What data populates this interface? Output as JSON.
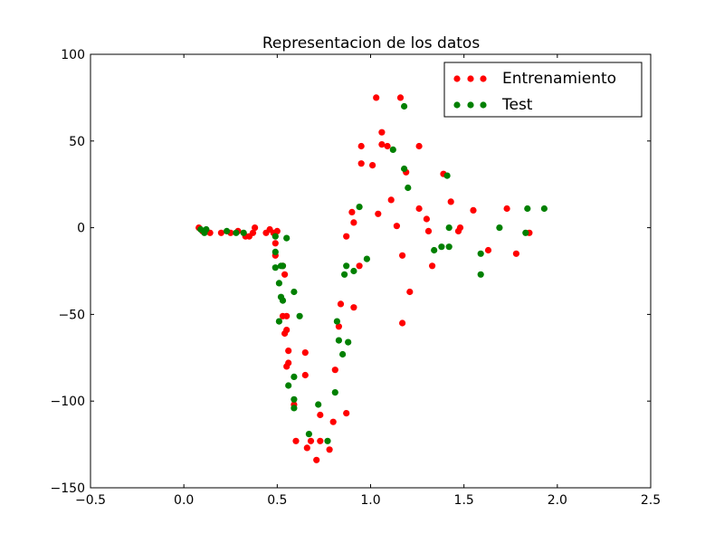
{
  "chart_data": {
    "type": "scatter",
    "title": "Representacion de los datos",
    "xlabel": "",
    "ylabel": "",
    "xlim": [
      -0.5,
      2.5
    ],
    "ylim": [
      -150,
      100
    ],
    "x_ticks": [
      -0.5,
      0.0,
      0.5,
      1.0,
      1.5,
      2.0,
      2.5
    ],
    "x_tick_labels": [
      "−0.5",
      "0.0",
      "0.5",
      "1.0",
      "1.5",
      "2.0",
      "2.5"
    ],
    "y_ticks": [
      -150,
      -100,
      -50,
      0,
      50,
      100
    ],
    "y_tick_labels": [
      "−150",
      "−100",
      "−50",
      "0",
      "50",
      "100"
    ],
    "grid": false,
    "legend_position": "top-right",
    "series": [
      {
        "name": "Entrenamiento",
        "color": "#ff0000",
        "points": [
          [
            0.08,
            0
          ],
          [
            0.1,
            -2
          ],
          [
            0.14,
            -3
          ],
          [
            0.2,
            -3
          ],
          [
            0.25,
            -3
          ],
          [
            0.29,
            -2
          ],
          [
            0.33,
            -5
          ],
          [
            0.35,
            -5
          ],
          [
            0.37,
            -3
          ],
          [
            0.38,
            0
          ],
          [
            0.44,
            -3
          ],
          [
            0.46,
            -1
          ],
          [
            0.48,
            -3
          ],
          [
            0.49,
            -9
          ],
          [
            0.49,
            -16
          ],
          [
            0.5,
            -2
          ],
          [
            0.53,
            -22
          ],
          [
            0.54,
            -27
          ],
          [
            0.53,
            -51
          ],
          [
            0.55,
            -51
          ],
          [
            0.54,
            -61
          ],
          [
            0.55,
            -59
          ],
          [
            0.56,
            -71
          ],
          [
            0.55,
            -80
          ],
          [
            0.56,
            -78
          ],
          [
            0.59,
            -102
          ],
          [
            0.6,
            -123
          ],
          [
            0.65,
            -72
          ],
          [
            0.65,
            -85
          ],
          [
            0.66,
            -127
          ],
          [
            0.68,
            -123
          ],
          [
            0.71,
            -134
          ],
          [
            0.73,
            -108
          ],
          [
            0.73,
            -123
          ],
          [
            0.78,
            -128
          ],
          [
            0.8,
            -112
          ],
          [
            0.81,
            -82
          ],
          [
            0.83,
            -57
          ],
          [
            0.84,
            -44
          ],
          [
            0.87,
            -5
          ],
          [
            0.87,
            -107
          ],
          [
            0.9,
            9
          ],
          [
            0.91,
            3
          ],
          [
            0.91,
            -46
          ],
          [
            0.94,
            -22
          ],
          [
            0.95,
            37
          ],
          [
            0.95,
            47
          ],
          [
            1.01,
            36
          ],
          [
            1.03,
            75
          ],
          [
            1.04,
            8
          ],
          [
            1.06,
            55
          ],
          [
            1.06,
            48
          ],
          [
            1.09,
            47
          ],
          [
            1.11,
            16
          ],
          [
            1.14,
            1
          ],
          [
            1.16,
            75
          ],
          [
            1.17,
            -16
          ],
          [
            1.17,
            -55
          ],
          [
            1.19,
            32
          ],
          [
            1.21,
            -37
          ],
          [
            1.26,
            47
          ],
          [
            1.26,
            11
          ],
          [
            1.3,
            5
          ],
          [
            1.31,
            -2
          ],
          [
            1.33,
            -22
          ],
          [
            1.39,
            31
          ],
          [
            1.43,
            15
          ],
          [
            1.47,
            -2
          ],
          [
            1.48,
            0
          ],
          [
            1.55,
            10
          ],
          [
            1.63,
            -13
          ],
          [
            1.73,
            11
          ],
          [
            1.78,
            -15
          ],
          [
            1.85,
            -3
          ]
        ]
      },
      {
        "name": "Test",
        "color": "#008000",
        "points": [
          [
            0.09,
            -1
          ],
          [
            0.11,
            -3
          ],
          [
            0.12,
            -1
          ],
          [
            0.23,
            -2
          ],
          [
            0.28,
            -3
          ],
          [
            0.32,
            -3
          ],
          [
            0.49,
            -5
          ],
          [
            0.49,
            -14
          ],
          [
            0.49,
            -23
          ],
          [
            0.52,
            -22
          ],
          [
            0.53,
            -22
          ],
          [
            0.55,
            -6
          ],
          [
            0.51,
            -32
          ],
          [
            0.52,
            -40
          ],
          [
            0.53,
            -42
          ],
          [
            0.51,
            -54
          ],
          [
            0.59,
            -37
          ],
          [
            0.62,
            -51
          ],
          [
            0.56,
            -91
          ],
          [
            0.59,
            -86
          ],
          [
            0.59,
            -99
          ],
          [
            0.59,
            -104
          ],
          [
            0.67,
            -119
          ],
          [
            0.72,
            -102
          ],
          [
            0.77,
            -123
          ],
          [
            0.81,
            -95
          ],
          [
            0.82,
            -54
          ],
          [
            0.83,
            -65
          ],
          [
            0.85,
            -73
          ],
          [
            0.86,
            -27
          ],
          [
            0.87,
            -22
          ],
          [
            0.88,
            -66
          ],
          [
            0.91,
            -25
          ],
          [
            0.94,
            12
          ],
          [
            0.98,
            -18
          ],
          [
            1.12,
            45
          ],
          [
            1.18,
            34
          ],
          [
            1.18,
            70
          ],
          [
            1.2,
            23
          ],
          [
            1.34,
            -13
          ],
          [
            1.38,
            -11
          ],
          [
            1.41,
            30
          ],
          [
            1.42,
            0
          ],
          [
            1.42,
            -11
          ],
          [
            1.59,
            -15
          ],
          [
            1.59,
            -27
          ],
          [
            1.69,
            0
          ],
          [
            1.83,
            -3
          ],
          [
            1.84,
            11
          ],
          [
            1.93,
            11
          ]
        ]
      }
    ]
  }
}
